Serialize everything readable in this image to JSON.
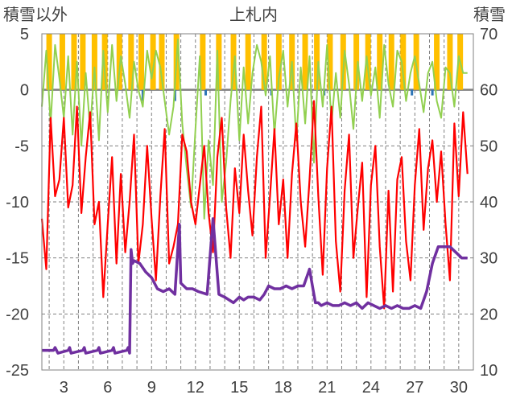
{
  "chart_data": {
    "type": "line",
    "title": "上札内",
    "y_left_label": "積雪以外",
    "y_right_label": "積雪",
    "x_ticks": [
      3,
      6,
      9,
      12,
      15,
      18,
      21,
      24,
      27,
      30
    ],
    "x_range": [
      1.5,
      31.0
    ],
    "y_left_range": [
      -25,
      5
    ],
    "y_left_ticks": [
      5,
      0,
      -5,
      -10,
      -15,
      -20,
      -25
    ],
    "y_right_range": [
      10,
      70
    ],
    "y_right_ticks": [
      70,
      60,
      50,
      40,
      30,
      20,
      10
    ],
    "grid": true,
    "colors": {
      "precip_bar": "#FFC000",
      "precip_blue": "#2E75B6",
      "green_series": "#92D050",
      "red_series": "#FF0000",
      "snow_series": "#7030A0",
      "frame": "#808080",
      "grid": "#808080"
    },
    "series": [
      {
        "key": "green",
        "axis": "left",
        "x": [
          1.5,
          1.8,
          2.1,
          2.4,
          2.7,
          3.0,
          3.3,
          3.6,
          3.9,
          4.2,
          4.5,
          4.8,
          5.1,
          5.4,
          5.7,
          6.0,
          6.3,
          6.6,
          6.9,
          7.2,
          7.5,
          7.8,
          8.1,
          8.4,
          8.7,
          9.0,
          9.3,
          9.6,
          9.9,
          10.2,
          10.5,
          10.8,
          11.1,
          11.4,
          11.7,
          12.0,
          12.3,
          12.6,
          12.9,
          13.2,
          13.5,
          13.8,
          14.1,
          14.4,
          14.7,
          15.0,
          15.3,
          15.6,
          15.9,
          16.2,
          16.5,
          16.8,
          17.1,
          17.4,
          17.7,
          18.0,
          18.3,
          18.6,
          18.9,
          19.2,
          19.5,
          19.8,
          20.1,
          20.4,
          20.7,
          21.0,
          21.3,
          21.6,
          21.9,
          22.2,
          22.5,
          22.8,
          23.1,
          23.4,
          23.7,
          24.0,
          24.3,
          24.6,
          24.9,
          25.2,
          25.5,
          25.8,
          26.1,
          26.4,
          26.7,
          27.0,
          27.3,
          27.6,
          27.9,
          28.2,
          28.5,
          28.8,
          29.1,
          29.4,
          29.7,
          30.0,
          30.3,
          30.6
        ],
        "y": [
          -1.5,
          3.5,
          -3.0,
          4.0,
          1.0,
          -2.5,
          3.0,
          -4.0,
          2.5,
          -5.0,
          1.5,
          -3.5,
          2.0,
          -4.5,
          3.5,
          -2.0,
          4.0,
          -1.0,
          3.0,
          0.5,
          -2.5,
          2.5,
          0.0,
          -1.5,
          3.5,
          1.0,
          3.5,
          2.0,
          -1.0,
          -4.0,
          -1.5,
          4.5,
          -3.0,
          -7.0,
          -10.5,
          -3.5,
          3.0,
          -11.5,
          -4.5,
          -8.5,
          3.5,
          -10.0,
          -6.5,
          -1.0,
          3.0,
          -4.5,
          2.0,
          -3.0,
          1.5,
          4.0,
          2.5,
          -0.5,
          3.0,
          -4.0,
          1.0,
          3.5,
          -1.5,
          2.5,
          -4.5,
          2.0,
          -3.0,
          3.0,
          -6.5,
          2.5,
          -1.5,
          4.0,
          -3.0,
          1.5,
          -2.5,
          3.5,
          0.5,
          -3.5,
          2.5,
          -1.0,
          3.0,
          -0.5,
          2.0,
          -2.5,
          4.0,
          0.5,
          -1.5,
          3.5,
          2.5,
          -1.0,
          1.5,
          3.0,
          0.5,
          -2.0,
          1.5,
          2.5,
          -1.0,
          -2.5,
          2.0,
          1.5,
          -1.5,
          3.0,
          1.5,
          1.5
        ]
      },
      {
        "key": "red",
        "axis": "left",
        "x": [
          1.5,
          1.8,
          2.1,
          2.4,
          2.7,
          3.0,
          3.3,
          3.6,
          3.9,
          4.2,
          4.5,
          4.8,
          5.1,
          5.4,
          5.7,
          6.0,
          6.3,
          6.6,
          6.9,
          7.2,
          7.5,
          7.8,
          8.1,
          8.4,
          8.7,
          9.0,
          9.3,
          9.6,
          9.9,
          10.2,
          10.5,
          10.8,
          11.1,
          11.4,
          11.7,
          12.0,
          12.3,
          12.6,
          12.9,
          13.2,
          13.5,
          13.8,
          14.1,
          14.4,
          14.7,
          15.0,
          15.3,
          15.6,
          15.9,
          16.2,
          16.5,
          16.8,
          17.1,
          17.4,
          17.7,
          18.0,
          18.3,
          18.6,
          18.9,
          19.2,
          19.5,
          19.8,
          20.1,
          20.4,
          20.7,
          21.0,
          21.3,
          21.6,
          21.9,
          22.2,
          22.5,
          22.8,
          23.1,
          23.4,
          23.7,
          24.0,
          24.3,
          24.6,
          24.9,
          25.2,
          25.5,
          25.8,
          26.1,
          26.4,
          26.7,
          27.0,
          27.3,
          27.6,
          27.9,
          28.2,
          28.5,
          28.8,
          29.1,
          29.4,
          29.7,
          30.0,
          30.3,
          30.6
        ],
        "y": [
          -11.5,
          -16.0,
          -2.5,
          -9.5,
          -8.0,
          -2.5,
          -10.5,
          -8.5,
          -1.5,
          -11.0,
          -6.0,
          -2.0,
          -12.0,
          -10.0,
          -18.5,
          -12.0,
          -6.0,
          -15.5,
          -7.5,
          -14.5,
          -10.0,
          -4.0,
          -15.5,
          -12.0,
          -5.0,
          -11.5,
          -17.0,
          -9.5,
          -3.5,
          -15.5,
          -14.0,
          -12.0,
          -4.0,
          -5.5,
          -10.0,
          -12.0,
          -8.5,
          -5.0,
          -11.0,
          -14.5,
          -6.0,
          -2.5,
          -10.5,
          -15.0,
          -7.0,
          -11.0,
          -4.0,
          -9.0,
          -13.0,
          -6.0,
          -1.5,
          -15.0,
          -9.5,
          -3.5,
          -12.0,
          -8.0,
          -15.0,
          -7.5,
          -3.0,
          -10.0,
          -14.0,
          -8.0,
          -1.0,
          -9.5,
          -16.5,
          -7.0,
          -1.5,
          -13.5,
          -18.0,
          -9.0,
          -4.0,
          -15.0,
          -10.5,
          -6.5,
          -18.5,
          -8.5,
          -5.0,
          -14.0,
          -19.5,
          -9.0,
          -18.0,
          -8.0,
          -6.0,
          -13.5,
          -17.0,
          -8.5,
          -3.5,
          -12.5,
          -7.0,
          -4.5,
          -10.0,
          -5.5,
          -12.0,
          -17.0,
          -3.0,
          -9.5,
          -2.0,
          -7.5
        ]
      },
      {
        "key": "snow",
        "axis": "right",
        "x": [
          1.5,
          2.3,
          2.4,
          2.5,
          2.6,
          3.3,
          3.4,
          3.5,
          4.3,
          4.4,
          4.5,
          5.3,
          5.4,
          5.5,
          6.3,
          6.4,
          6.5,
          7.3,
          7.4,
          7.5,
          7.6,
          7.7,
          7.8,
          8.2,
          8.6,
          9.0,
          9.4,
          9.8,
          10.2,
          10.6,
          10.9,
          11.0,
          11.4,
          11.8,
          12.2,
          12.8,
          13.2,
          13.6,
          14.0,
          14.6,
          15.0,
          15.3,
          15.6,
          16.0,
          16.4,
          16.7,
          17.0,
          17.4,
          17.8,
          18.2,
          18.6,
          19.0,
          19.4,
          19.8,
          20.0,
          20.2,
          20.4,
          20.6,
          21.0,
          21.4,
          21.8,
          22.2,
          22.6,
          23.0,
          23.4,
          23.8,
          24.2,
          24.6,
          25.0,
          25.4,
          25.8,
          26.2,
          26.6,
          27.0,
          27.4,
          27.8,
          28.2,
          28.6,
          29.0,
          29.4,
          29.8,
          30.2,
          30.6
        ],
        "y": [
          13.5,
          13.5,
          14.0,
          13.5,
          13.0,
          13.5,
          14.0,
          13.0,
          13.5,
          14.0,
          13.0,
          13.5,
          14.0,
          13.0,
          13.5,
          14.0,
          13.0,
          13.5,
          14.0,
          13.0,
          31.5,
          29.0,
          29.5,
          29.0,
          27.5,
          26.5,
          24.5,
          24.0,
          24.5,
          23.5,
          36.0,
          25.5,
          24.5,
          24.5,
          24.0,
          23.5,
          37.0,
          23.5,
          23.0,
          22.0,
          23.0,
          22.5,
          23.0,
          23.0,
          22.5,
          23.5,
          25.0,
          24.5,
          24.5,
          25.0,
          24.5,
          25.0,
          25.0,
          28.0,
          25.0,
          22.0,
          22.0,
          21.5,
          22.0,
          21.5,
          21.5,
          22.0,
          21.5,
          22.0,
          21.0,
          22.0,
          21.5,
          21.0,
          21.5,
          21.0,
          21.5,
          21.0,
          21.0,
          21.5,
          21.0,
          24.0,
          29.0,
          32.0,
          32.0,
          32.0,
          31.0,
          30.0,
          30.0
        ]
      }
    ],
    "precip_bars": {
      "axis": "left",
      "x": [
        2.0,
        2.9,
        3.7,
        4.3,
        5.1,
        5.8,
        6.8,
        7.6,
        8.3,
        9.1,
        9.7,
        10.7,
        12.5,
        13.6,
        14.6,
        15.6,
        16.7,
        17.7,
        18.6,
        19.5,
        20.3,
        21.2,
        22.1,
        23.0,
        23.8,
        24.6,
        25.4,
        26.2,
        27.1,
        28.5,
        29.4,
        30.1
      ],
      "y": [
        5,
        5,
        5,
        5,
        5,
        5,
        5,
        5,
        5,
        5,
        5,
        5,
        5,
        5,
        5,
        5,
        5,
        5,
        5,
        5,
        5,
        5,
        5,
        5,
        5,
        5,
        5,
        5,
        5,
        5,
        5,
        5
      ]
    },
    "blue_marks": {
      "axis": "left",
      "x": [
        8.4,
        10.6,
        12.7,
        17.2,
        20.8,
        26.8,
        28.2
      ],
      "y": [
        -1.0,
        -1.0,
        -0.5,
        -0.5,
        -0.5,
        -0.5,
        -0.5
      ]
    }
  }
}
